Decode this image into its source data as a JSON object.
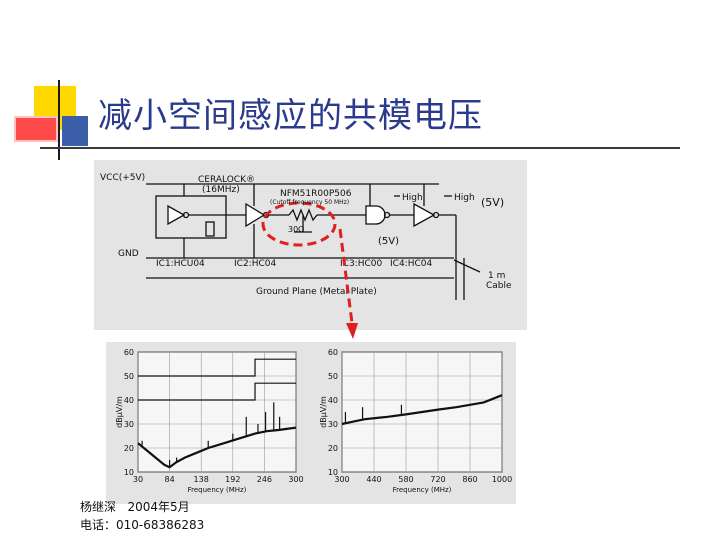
{
  "slide": {
    "title": "减小空间感应的共模电压",
    "footer_author": "杨继深   2004年5月",
    "footer_phone": "电话：010-68386283"
  },
  "schematic": {
    "vcc": "VCC(+5V)",
    "gnd": "GND",
    "osc_label_1": "CERALOCK®",
    "osc_label_2": "(16MHz)",
    "filter_part": "NFM51R00P506",
    "filter_spec": "(Cutoff frequency   50 MHz)",
    "resistor": "30Ω",
    "high1": "High",
    "high2": "High",
    "v5_top": "(5V)",
    "v5_mid": "(5V)",
    "ic1": "IC1:HCU04",
    "ic2": "IC2:HC04",
    "ic3": "IC3:HC00",
    "ic4": "IC4:HC04",
    "cable_1": "1 m",
    "cable_2": "Cable",
    "ground_plane": "Ground Plane (Metal Plate)"
  },
  "chart_data": [
    {
      "type": "line",
      "ylabel": "dBμV/m",
      "xlabel": "Frequency (MHz)",
      "xlim": [
        30,
        300
      ],
      "ylim": [
        10,
        60
      ],
      "x_ticks": [
        "30",
        "84",
        "138",
        "192",
        "246",
        "300"
      ],
      "y_ticks": [
        "60",
        "50",
        "40",
        "30",
        "20",
        "10"
      ],
      "series": [
        {
          "x": [
            30,
            45,
            60,
            75,
            84,
            95,
            110,
            130,
            150,
            170,
            190,
            210,
            230,
            250,
            270,
            300
          ],
          "values": [
            22,
            19,
            16,
            13,
            12,
            14,
            16,
            18,
            20,
            21.5,
            23,
            24.5,
            26,
            27,
            27.5,
            28.5
          ]
        }
      ],
      "spikes": [
        {
          "x": 37,
          "value": 23
        },
        {
          "x": 84,
          "value": 15
        },
        {
          "x": 96,
          "value": 16
        },
        {
          "x": 150,
          "value": 23
        },
        {
          "x": 192,
          "value": 26
        },
        {
          "x": 215,
          "value": 33
        },
        {
          "x": 235,
          "value": 30
        },
        {
          "x": 248,
          "value": 35
        },
        {
          "x": 262,
          "value": 39
        },
        {
          "x": 272,
          "value": 33
        }
      ],
      "limit_lines": [
        {
          "x": [
            30,
            230,
            230,
            300
          ],
          "values": [
            50,
            50,
            57,
            57
          ]
        },
        {
          "x": [
            30,
            230,
            230,
            300
          ],
          "values": [
            40,
            40,
            47,
            47
          ]
        }
      ]
    },
    {
      "type": "line",
      "ylabel": "dBμV/m",
      "xlabel": "Frequency (MHz)",
      "xlim": [
        300,
        1000
      ],
      "ylim": [
        10,
        60
      ],
      "x_ticks": [
        "300",
        "440",
        "580",
        "720",
        "860",
        "1000"
      ],
      "y_ticks": [
        "60",
        "50",
        "40",
        "30",
        "20",
        "10"
      ],
      "series": [
        {
          "x": [
            300,
            350,
            400,
            450,
            500,
            580,
            650,
            720,
            800,
            860,
            920,
            960,
            1000
          ],
          "values": [
            30,
            31,
            32,
            32.5,
            33,
            34,
            35,
            36,
            37,
            38,
            39,
            40.5,
            42
          ]
        }
      ],
      "spikes": [
        {
          "x": 315,
          "value": 35
        },
        {
          "x": 390,
          "value": 37
        },
        {
          "x": 560,
          "value": 38
        }
      ]
    }
  ]
}
